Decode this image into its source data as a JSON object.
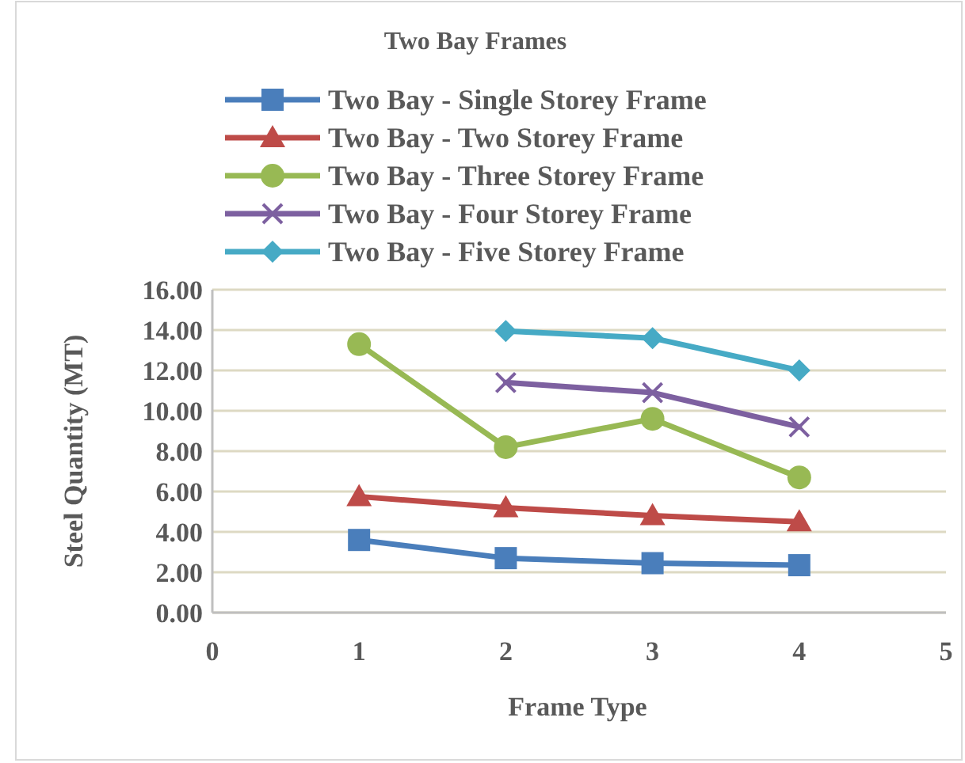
{
  "chart_data": {
    "type": "line",
    "title": "Two Bay Frames",
    "xlabel": "Frame Type",
    "ylabel": "Steel Quantity (MT)",
    "x": [
      1,
      2,
      3,
      4
    ],
    "series": [
      {
        "name": "Two Bay - Single Storey Frame",
        "color": "#4a7ebb",
        "marker": "square",
        "values": [
          3.6,
          2.7,
          2.45,
          2.35
        ]
      },
      {
        "name": "Two Bay - Two Storey Frame",
        "color": "#be4b48",
        "marker": "triangle",
        "values": [
          5.75,
          5.2,
          4.8,
          4.5
        ]
      },
      {
        "name": "Two Bay - Three Storey Frame",
        "color": "#98b954",
        "marker": "circle",
        "values": [
          13.3,
          8.2,
          9.6,
          6.7
        ]
      },
      {
        "name": "Two Bay - Four Storey Frame",
        "color": "#7d60a0",
        "marker": "cross",
        "values": [
          null,
          11.4,
          10.9,
          9.2
        ]
      },
      {
        "name": "Two Bay - Five Storey Frame",
        "color": "#46aac5",
        "marker": "diamond",
        "values": [
          null,
          13.95,
          13.6,
          12.0
        ]
      }
    ],
    "xlim": [
      0,
      5
    ],
    "xticks": [
      0,
      1,
      2,
      3,
      4,
      5
    ],
    "ylim": [
      0,
      16
    ],
    "yticks": [
      {
        "value": 0,
        "label": "0.00"
      },
      {
        "value": 2,
        "label": "2.00"
      },
      {
        "value": 4,
        "label": "4.00"
      },
      {
        "value": 6,
        "label": "6.00"
      },
      {
        "value": 8,
        "label": "8.00"
      },
      {
        "value": 10,
        "label": "10.00"
      },
      {
        "value": 12,
        "label": "12.00"
      },
      {
        "value": 14,
        "label": "14.00"
      },
      {
        "value": 16,
        "label": "16.00"
      }
    ],
    "grid": "y",
    "legend": "top",
    "line_style": "solid"
  }
}
